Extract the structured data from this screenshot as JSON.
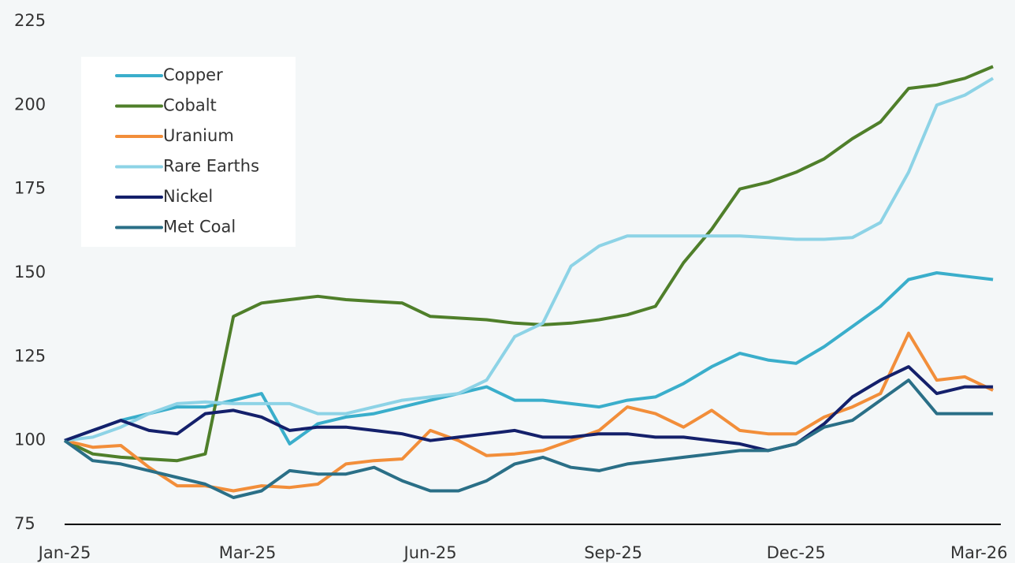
{
  "chart_data": {
    "type": "line",
    "x": [
      0,
      2,
      4,
      6,
      8,
      10,
      12,
      14,
      16,
      18,
      20,
      22,
      24,
      26,
      28,
      30,
      32,
      34,
      36,
      38,
      40,
      42,
      44,
      46,
      48,
      50,
      52,
      54,
      56,
      58,
      60,
      62,
      64,
      66
    ],
    "xlim": [
      0,
      67
    ],
    "xticks": [
      {
        "value": 0,
        "label": "Jan-25"
      },
      {
        "value": 13,
        "label": "Mar-25"
      },
      {
        "value": 26,
        "label": "Jun-25"
      },
      {
        "value": 39,
        "label": "Sep-25"
      },
      {
        "value": 52,
        "label": "Dec-25"
      },
      {
        "value": 65,
        "label": "Mar-26"
      }
    ],
    "ylim": [
      75,
      225
    ],
    "yticks": [
      75,
      100,
      125,
      150,
      175,
      200,
      225
    ],
    "series": [
      {
        "name": "Copper",
        "color": "#3aaecb",
        "values": [
          100,
          103,
          106,
          108,
          110,
          110,
          112,
          114,
          99,
          105,
          107,
          108,
          110,
          112,
          114,
          116,
          112,
          112,
          111,
          110,
          112,
          113,
          117,
          122,
          126,
          124,
          123,
          128,
          134,
          140,
          148,
          150,
          149,
          148
        ]
      },
      {
        "name": "Cobalt",
        "color": "#4f7f2a",
        "values": [
          100,
          96,
          95,
          94.5,
          94,
          96,
          137,
          141,
          142,
          143,
          142,
          141.5,
          141,
          137,
          136.5,
          136,
          135,
          134.5,
          135,
          136,
          137.5,
          140,
          153,
          163,
          175,
          177,
          180,
          184,
          190,
          195,
          205,
          206,
          208,
          211.5
        ]
      },
      {
        "name": "Uranium",
        "color": "#f28e3a",
        "values": [
          100,
          98,
          98.5,
          92,
          86.5,
          86.5,
          85,
          86.5,
          86,
          87,
          93,
          94,
          94.5,
          103,
          100,
          95.5,
          96,
          97,
          100,
          103,
          110,
          108,
          104,
          109,
          103,
          102,
          102,
          107,
          110,
          114,
          132,
          118,
          119,
          115
        ]
      },
      {
        "name": "Rare Earths",
        "color": "#8dd3e6",
        "values": [
          100,
          101,
          104,
          108,
          111,
          111.5,
          111,
          111,
          111,
          108,
          108,
          110,
          112,
          113,
          114,
          118,
          131,
          135,
          152,
          158,
          161,
          161,
          161,
          161,
          161,
          160.5,
          160,
          160,
          160.5,
          165,
          180,
          200,
          203,
          208
        ]
      },
      {
        "name": "Nickel",
        "color": "#14206b",
        "values": [
          100,
          103,
          106,
          103,
          102,
          108,
          109,
          107,
          103,
          104,
          104,
          103,
          102,
          100,
          101,
          102,
          103,
          101,
          101,
          102,
          102,
          101,
          101,
          100,
          99,
          97,
          99,
          105,
          113,
          118,
          122,
          114,
          116,
          116
        ]
      },
      {
        "name": "Met Coal",
        "color": "#2a6f87",
        "values": [
          100,
          94,
          93,
          91,
          89,
          87,
          83,
          85,
          91,
          90,
          90,
          92,
          88,
          85,
          85,
          88,
          93,
          95,
          92,
          91,
          93,
          94,
          95,
          96,
          97,
          97,
          99,
          104,
          106,
          112,
          118,
          108,
          108,
          108
        ]
      }
    ]
  }
}
